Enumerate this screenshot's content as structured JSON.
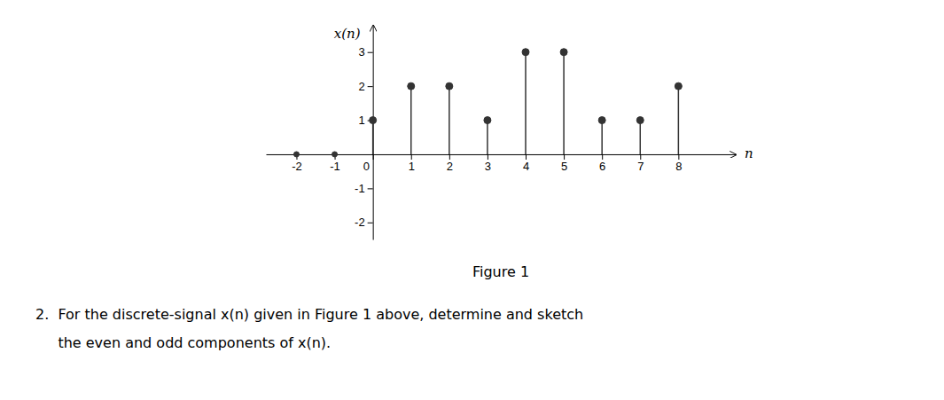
{
  "chart_data": {
    "type": "stem",
    "title": "Figure 1",
    "x_label": "n",
    "y_label": "x(n)",
    "x": [
      -2,
      -1,
      0,
      1,
      2,
      3,
      4,
      5,
      6,
      7,
      8
    ],
    "values": [
      0,
      0,
      1,
      2,
      2,
      1,
      3,
      3,
      1,
      1,
      2
    ],
    "color": "#333333",
    "xlim": [
      -2.8,
      9.5
    ],
    "ylim": [
      -2.5,
      3.8
    ],
    "xticks": [
      -2,
      -1,
      0,
      1,
      2,
      3,
      4,
      5,
      6,
      7,
      8
    ],
    "yticks": [
      -2,
      -1,
      1,
      2,
      3
    ],
    "grid": false,
    "annotations": [
      "2.  For the discrete-signal x(n) given in Figure 1 above, determine and sketch",
      "     the even and odd components of x(n)."
    ]
  }
}
